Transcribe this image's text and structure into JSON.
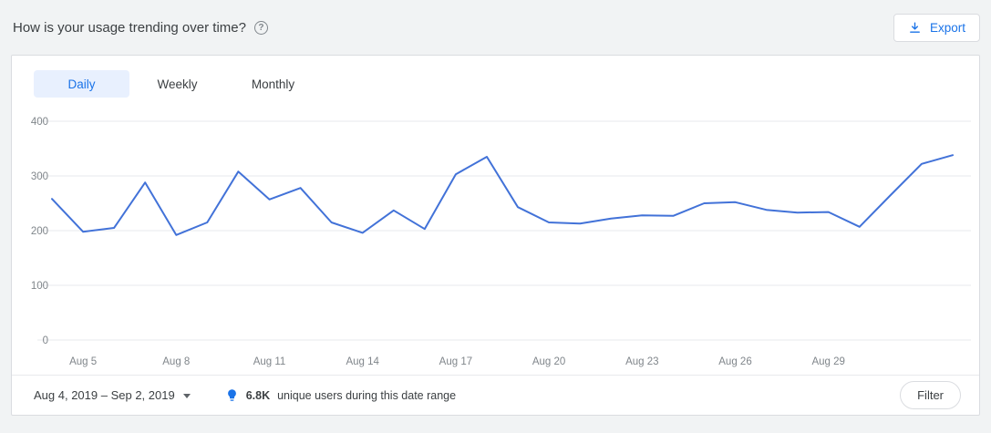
{
  "header": {
    "title": "How is your usage trending over time?",
    "help_glyph": "?",
    "export_label": "Export"
  },
  "tabs": [
    {
      "label": "Daily",
      "selected": true
    },
    {
      "label": "Weekly",
      "selected": false
    },
    {
      "label": "Monthly",
      "selected": false
    }
  ],
  "footer": {
    "date_range": "Aug 4, 2019 – Sep 2, 2019",
    "insight_value": "6.8K",
    "insight_text": "unique users during this date range",
    "filter_label": "Filter"
  },
  "colors": {
    "accent": "#1a73e8",
    "chart_line": "#4272d8",
    "tab_selected_bg": "#e8f0fe",
    "grid": "#e7e9ec",
    "axis_text": "#80868b"
  },
  "chart_data": {
    "type": "line",
    "title": "Daily usage trend",
    "x": [
      "Aug 4",
      "Aug 5",
      "Aug 6",
      "Aug 7",
      "Aug 8",
      "Aug 9",
      "Aug 10",
      "Aug 11",
      "Aug 12",
      "Aug 13",
      "Aug 14",
      "Aug 15",
      "Aug 16",
      "Aug 17",
      "Aug 18",
      "Aug 19",
      "Aug 20",
      "Aug 21",
      "Aug 22",
      "Aug 23",
      "Aug 24",
      "Aug 25",
      "Aug 26",
      "Aug 27",
      "Aug 28",
      "Aug 29",
      "Aug 30",
      "Aug 31",
      "Sep 1",
      "Sep 2"
    ],
    "values": [
      258,
      198,
      205,
      288,
      192,
      215,
      308,
      257,
      278,
      215,
      196,
      237,
      203,
      303,
      335,
      243,
      215,
      213,
      222,
      228,
      227,
      250,
      252,
      238,
      233,
      234,
      207,
      265,
      322,
      338
    ],
    "x_tick_labels": [
      "Aug 5",
      "Aug 8",
      "Aug 11",
      "Aug 14",
      "Aug 17",
      "Aug 20",
      "Aug 23",
      "Aug 26",
      "Aug 29"
    ],
    "ylim": [
      0,
      400
    ],
    "y_ticks": [
      0,
      100,
      200,
      300,
      400
    ],
    "grid": true,
    "legend": "none",
    "xlabel": "",
    "ylabel": ""
  }
}
